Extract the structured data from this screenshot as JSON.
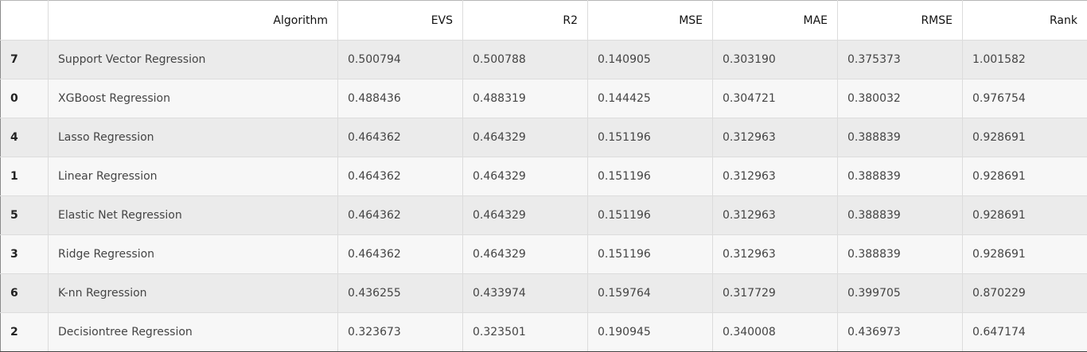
{
  "table": {
    "columns": [
      "",
      "Algorithm",
      "EVS",
      "R2",
      "MSE",
      "MAE",
      "RMSE",
      "Rank"
    ],
    "rows": [
      {
        "index": "7",
        "algorithm": "Support Vector Regression",
        "evs": "0.500794",
        "r2": "0.500788",
        "mse": "0.140905",
        "mae": "0.303190",
        "rmse": "0.375373",
        "rank": "1.001582"
      },
      {
        "index": "0",
        "algorithm": "XGBoost Regression",
        "evs": "0.488436",
        "r2": "0.488319",
        "mse": "0.144425",
        "mae": "0.304721",
        "rmse": "0.380032",
        "rank": "0.976754"
      },
      {
        "index": "4",
        "algorithm": "Lasso Regression",
        "evs": "0.464362",
        "r2": "0.464329",
        "mse": "0.151196",
        "mae": "0.312963",
        "rmse": "0.388839",
        "rank": "0.928691"
      },
      {
        "index": "1",
        "algorithm": "Linear Regression",
        "evs": "0.464362",
        "r2": "0.464329",
        "mse": "0.151196",
        "mae": "0.312963",
        "rmse": "0.388839",
        "rank": "0.928691"
      },
      {
        "index": "5",
        "algorithm": "Elastic Net Regression",
        "evs": "0.464362",
        "r2": "0.464329",
        "mse": "0.151196",
        "mae": "0.312963",
        "rmse": "0.388839",
        "rank": "0.928691"
      },
      {
        "index": "3",
        "algorithm": "Ridge Regression",
        "evs": "0.464362",
        "r2": "0.464329",
        "mse": "0.151196",
        "mae": "0.312963",
        "rmse": "0.388839",
        "rank": "0.928691"
      },
      {
        "index": "6",
        "algorithm": "K-nn Regression",
        "evs": "0.436255",
        "r2": "0.433974",
        "mse": "0.159764",
        "mae": "0.317729",
        "rmse": "0.399705",
        "rank": "0.870229"
      },
      {
        "index": "2",
        "algorithm": "Decisiontree Regression",
        "evs": "0.323673",
        "r2": "0.323501",
        "mse": "0.190945",
        "mae": "0.340008",
        "rmse": "0.436973",
        "rank": "0.647174"
      }
    ]
  },
  "colors": {
    "row_odd": "#ebebeb",
    "row_even": "#f7f7f7",
    "border": "#dcdcdc"
  }
}
